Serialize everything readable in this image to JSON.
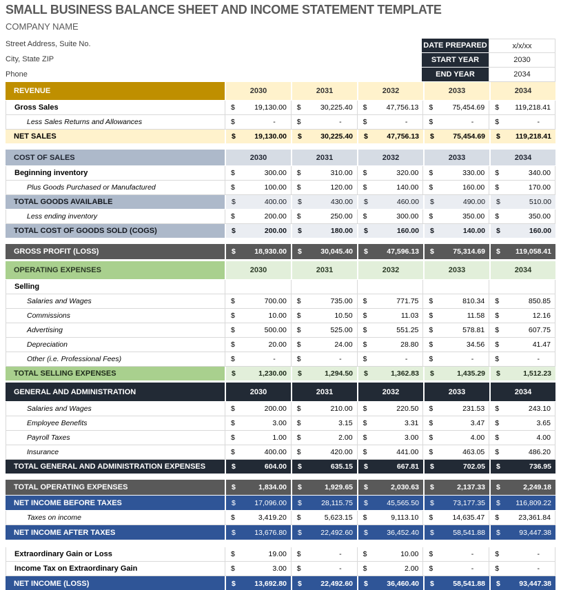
{
  "title": "SMALL BUSINESS BALANCE SHEET AND INCOME STATEMENT TEMPLATE",
  "company": {
    "name": "COMPANY NAME",
    "address": "Street Address, Suite No.",
    "city_state_zip": "City, State ZIP",
    "phone": "Phone"
  },
  "info_box": {
    "rows": [
      {
        "label": "DATE PREPARED",
        "value": "x/x/xx"
      },
      {
        "label": "START YEAR",
        "value": "2030"
      },
      {
        "label": "END YEAR",
        "value": "2034"
      }
    ]
  },
  "years": [
    "2030",
    "2031",
    "2032",
    "2033",
    "2034"
  ],
  "currency_symbol": "$",
  "colors": {
    "gold_header": "#BF8F00",
    "cream": "#FFF2CC",
    "bluegray_header": "#ADB9CA",
    "bluegray_light": "#D6DCE4",
    "bluegray_pale": "#EAEDF2",
    "green_header": "#A9D08E",
    "green_light": "#E2EFDA",
    "navy": "#222A35",
    "dark_gray": "#595959",
    "blue": "#2F5597",
    "title_gray": "#595959",
    "grid_border": "#D9D9D9"
  },
  "table": {
    "rows": [
      {
        "type": "year_header",
        "theme": "gold",
        "label": "REVENUE"
      },
      {
        "type": "data",
        "label": "Gross Sales",
        "label_style": "bold",
        "values": [
          "19,130.00",
          "30,225.40",
          "47,756.13",
          "75,454.69",
          "119,218.41"
        ]
      },
      {
        "type": "data",
        "label": "Less Sales Returns and Allowances",
        "label_style": "italic",
        "values": [
          "-",
          "-",
          "-",
          "-",
          "-"
        ]
      },
      {
        "type": "total",
        "theme": "cream",
        "label": "NET SALES",
        "bold_values": true,
        "values": [
          "19,130.00",
          "30,225.40",
          "47,756.13",
          "75,454.69",
          "119,218.41"
        ]
      },
      {
        "type": "gap",
        "size": 8
      },
      {
        "type": "year_header",
        "theme": "bluegray-h",
        "label": "COST OF SALES"
      },
      {
        "type": "data",
        "label": "Beginning inventory",
        "label_style": "bold",
        "values": [
          "300.00",
          "310.00",
          "320.00",
          "330.00",
          "340.00"
        ]
      },
      {
        "type": "data",
        "label": "Plus Goods Purchased or Manufactured",
        "label_style": "italic",
        "values": [
          "100.00",
          "120.00",
          "140.00",
          "160.00",
          "170.00"
        ]
      },
      {
        "type": "total",
        "theme": "bluegray",
        "label": "TOTAL GOODS AVAILABLE",
        "bold_values": false,
        "values": [
          "400.00",
          "430.00",
          "460.00",
          "490.00",
          "510.00"
        ]
      },
      {
        "type": "data",
        "label": "Less ending inventory",
        "label_style": "italic",
        "values": [
          "200.00",
          "250.00",
          "300.00",
          "350.00",
          "350.00"
        ]
      },
      {
        "type": "total",
        "theme": "bluegray",
        "label": "TOTAL COST OF GOODS SOLD (COGS)",
        "bold_values": true,
        "values": [
          "200.00",
          "180.00",
          "160.00",
          "140.00",
          "160.00"
        ]
      },
      {
        "type": "gap",
        "size": 8
      },
      {
        "type": "total",
        "theme": "darkgray",
        "label": "GROSS PROFIT (LOSS)",
        "bold_values": true,
        "values": [
          "18,930.00",
          "30,045.40",
          "47,596.13",
          "75,314.69",
          "119,058.41"
        ]
      },
      {
        "type": "gap",
        "size": 2
      },
      {
        "type": "year_header",
        "theme": "green-h",
        "label": "OPERATING EXPENSES"
      },
      {
        "type": "section",
        "label": "Selling"
      },
      {
        "type": "data",
        "label": "Salaries and Wages",
        "label_style": "italic",
        "values": [
          "700.00",
          "735.00",
          "771.75",
          "810.34",
          "850.85"
        ]
      },
      {
        "type": "data",
        "label": "Commissions",
        "label_style": "italic",
        "values": [
          "10.00",
          "10.50",
          "11.03",
          "11.58",
          "12.16"
        ]
      },
      {
        "type": "data",
        "label": "Advertising",
        "label_style": "italic",
        "values": [
          "500.00",
          "525.00",
          "551.25",
          "578.81",
          "607.75"
        ]
      },
      {
        "type": "data",
        "label": "Depreciation",
        "label_style": "italic",
        "values": [
          "20.00",
          "24.00",
          "28.80",
          "34.56",
          "41.47"
        ]
      },
      {
        "type": "data",
        "label": "Other (i.e. Professional Fees)",
        "label_style": "italic",
        "values": [
          "-",
          "-",
          "-",
          "-",
          "-"
        ]
      },
      {
        "type": "total",
        "theme": "green",
        "label": "TOTAL SELLING EXPENSES",
        "bold_values": true,
        "values": [
          "1,230.00",
          "1,294.50",
          "1,362.83",
          "1,435.29",
          "1,512.23"
        ]
      },
      {
        "type": "gap",
        "size": 2
      },
      {
        "type": "year_header",
        "theme": "navy-h",
        "label": "GENERAL AND ADMINISTRATION"
      },
      {
        "type": "data",
        "label": "Salaries and Wages",
        "label_style": "italic",
        "values": [
          "200.00",
          "210.00",
          "220.50",
          "231.53",
          "243.10"
        ]
      },
      {
        "type": "data",
        "label": "Employee Benefits",
        "label_style": "italic",
        "values": [
          "3.00",
          "3.15",
          "3.31",
          "3.47",
          "3.65"
        ]
      },
      {
        "type": "data",
        "label": "Payroll Taxes",
        "label_style": "italic",
        "values": [
          "1.00",
          "2.00",
          "3.00",
          "4.00",
          "4.00"
        ]
      },
      {
        "type": "data",
        "label": "Insurance",
        "label_style": "italic",
        "values": [
          "400.00",
          "420.00",
          "441.00",
          "463.05",
          "486.20"
        ]
      },
      {
        "type": "total",
        "theme": "navy",
        "label": "TOTAL GENERAL AND ADMINISTRATION EXPENSES",
        "bold_values": true,
        "values": [
          "604.00",
          "635.15",
          "667.81",
          "702.05",
          "736.95"
        ]
      },
      {
        "type": "gap",
        "size": 8
      },
      {
        "type": "total",
        "theme": "darkgray",
        "label": "TOTAL OPERATING EXPENSES",
        "bold_values": true,
        "values": [
          "1,834.00",
          "1,929.65",
          "2,030.63",
          "2,137.33",
          "2,249.18"
        ]
      },
      {
        "type": "total",
        "theme": "blue",
        "label": "NET INCOME BEFORE TAXES",
        "bold_values": false,
        "values": [
          "17,096.00",
          "28,115.75",
          "45,565.50",
          "73,177.35",
          "116,809.22"
        ]
      },
      {
        "type": "data",
        "label": "Taxes on income",
        "label_style": "italic",
        "values": [
          "3,419.20",
          "5,623.15",
          "9,113.10",
          "14,635.47",
          "23,361.84"
        ]
      },
      {
        "type": "total",
        "theme": "blue",
        "label": "NET INCOME AFTER TAXES",
        "bold_values": false,
        "values": [
          "13,676.80",
          "22,492.60",
          "36,452.40",
          "58,541.88",
          "93,447.38"
        ]
      },
      {
        "type": "gap",
        "size": 10
      },
      {
        "type": "data",
        "label": "Extraordinary Gain or Loss",
        "label_style": "bold",
        "values": [
          "19.00",
          "-",
          "10.00",
          "-",
          "-"
        ]
      },
      {
        "type": "data",
        "label": "Income Tax on Extraordinary Gain",
        "label_style": "bold",
        "values": [
          "3.00",
          "-",
          "2.00",
          "-",
          "-"
        ]
      },
      {
        "type": "total",
        "theme": "blue",
        "label": "NET INCOME (LOSS)",
        "bold_values": true,
        "values": [
          "13,692.80",
          "22,492.60",
          "36,460.40",
          "58,541.88",
          "93,447.38"
        ]
      }
    ]
  }
}
